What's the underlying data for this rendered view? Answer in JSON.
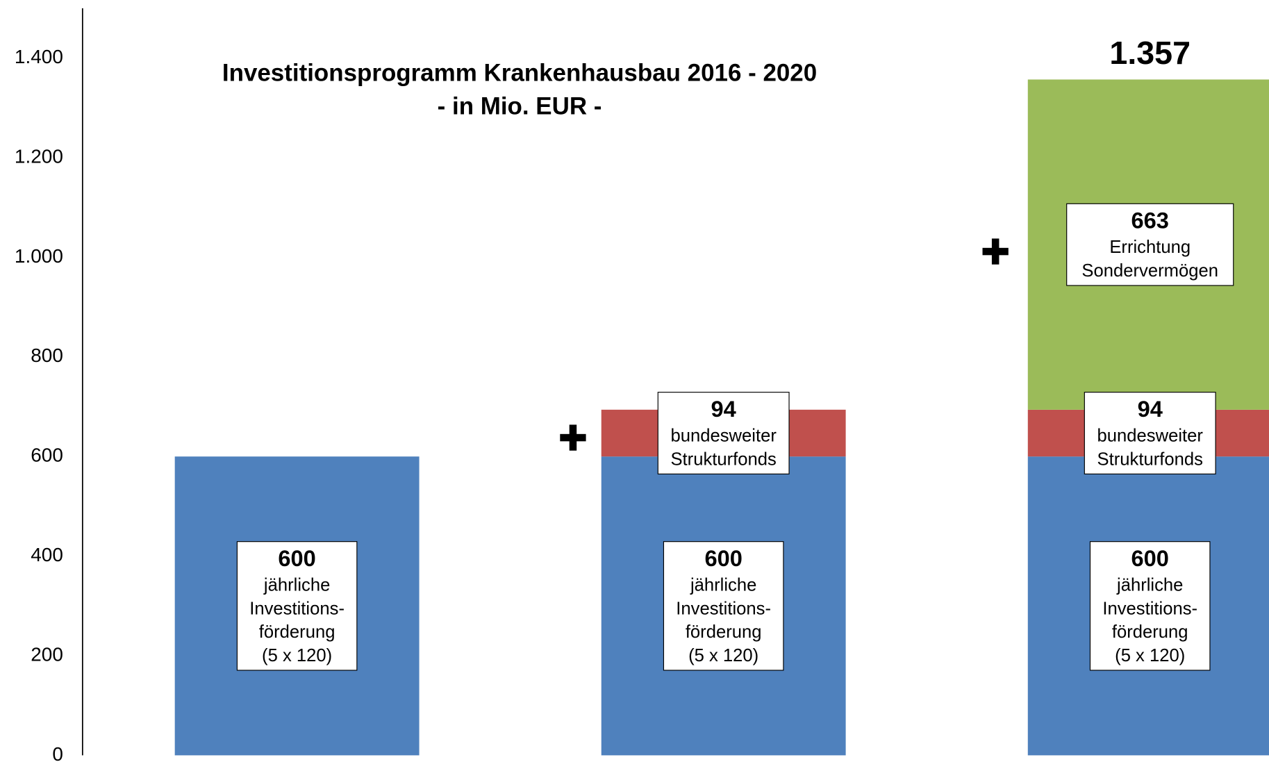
{
  "chart_data": {
    "type": "stacked_bar",
    "title": "Investitionsprogramm Krankenhausbau 2016 - 2020",
    "subtitle": "- in Mio. EUR -",
    "categories": [
      null,
      null,
      null
    ],
    "series": [
      {
        "description": [
          "jährliche",
          "Investitions-",
          "förderung",
          "(5 x 120)"
        ],
        "color": "#4f81bd",
        "values": [
          600,
          600,
          600
        ]
      },
      {
        "description": [
          "bundesweiter",
          "Strukturfonds"
        ],
        "color": "#c0504d",
        "values": [
          null,
          94,
          94
        ]
      },
      {
        "description": [
          "Errichtung",
          "Sondervermögen"
        ],
        "color": "#9bbb59",
        "values": [
          null,
          null,
          663
        ]
      }
    ],
    "totals": {
      "values": [
        null,
        null,
        1357
      ],
      "value_labels": [
        null,
        null,
        "1.357"
      ]
    },
    "ylim": [
      0,
      1500
    ],
    "yticks": [
      0,
      200,
      400,
      600,
      800,
      {
        "value": 1000,
        "label": "1.000"
      },
      {
        "value": 1200,
        "label": "1.200"
      },
      {
        "value": 1400,
        "label": "1.400"
      }
    ]
  }
}
